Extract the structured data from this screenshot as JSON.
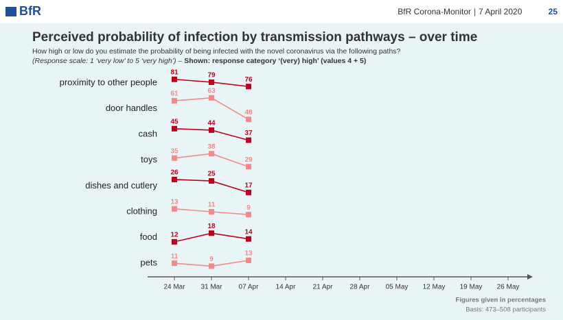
{
  "header": {
    "logo": "BfR",
    "source": "BfR Corona-Monitor",
    "date": "7 April 2020",
    "page": "25"
  },
  "chart_data": {
    "type": "line",
    "title": "Perceived probability of infection by transmission pathways – over time",
    "subtitle": "How high or low do you estimate the probability of being infected with the novel coronavirus via the following paths?",
    "note_italic": "(Response scale: 1 ‘very low’ to 5 ‘very high’) – ",
    "note_bold": "Shown: response category ‘(very) high’ (values 4 + 5)",
    "categories": [
      "24 Mar",
      "31 Mar",
      "07 Apr",
      "14 Apr",
      "21 Apr",
      "28 Apr",
      "05 May",
      "12 May",
      "19 May",
      "26 May"
    ],
    "series": [
      {
        "name": "proximity to other people",
        "color": "#c0001a",
        "values": [
          81,
          79,
          76,
          null,
          null,
          null,
          null,
          null,
          null,
          null
        ]
      },
      {
        "name": "door handles",
        "color": "#f28a8c",
        "values": [
          61,
          63,
          48,
          null,
          null,
          null,
          null,
          null,
          null,
          null
        ]
      },
      {
        "name": "cash",
        "color": "#c0001a",
        "values": [
          45,
          44,
          37,
          null,
          null,
          null,
          null,
          null,
          null,
          null
        ]
      },
      {
        "name": "toys",
        "color": "#f28a8c",
        "values": [
          35,
          38,
          29,
          null,
          null,
          null,
          null,
          null,
          null,
          null
        ]
      },
      {
        "name": "dishes and cutlery",
        "color": "#c0001a",
        "values": [
          26,
          25,
          17,
          null,
          null,
          null,
          null,
          null,
          null,
          null
        ]
      },
      {
        "name": "clothing",
        "color": "#f28a8c",
        "values": [
          13,
          11,
          9,
          null,
          null,
          null,
          null,
          null,
          null,
          null
        ]
      },
      {
        "name": "food",
        "color": "#c0001a",
        "values": [
          12,
          18,
          14,
          null,
          null,
          null,
          null,
          null,
          null,
          null
        ]
      },
      {
        "name": "pets",
        "color": "#f28a8c",
        "values": [
          11,
          9,
          13,
          null,
          null,
          null,
          null,
          null,
          null,
          null
        ]
      }
    ]
  },
  "footer": {
    "line1": "Figures given in percentages",
    "line2": "Basis: 473–508 participants"
  }
}
